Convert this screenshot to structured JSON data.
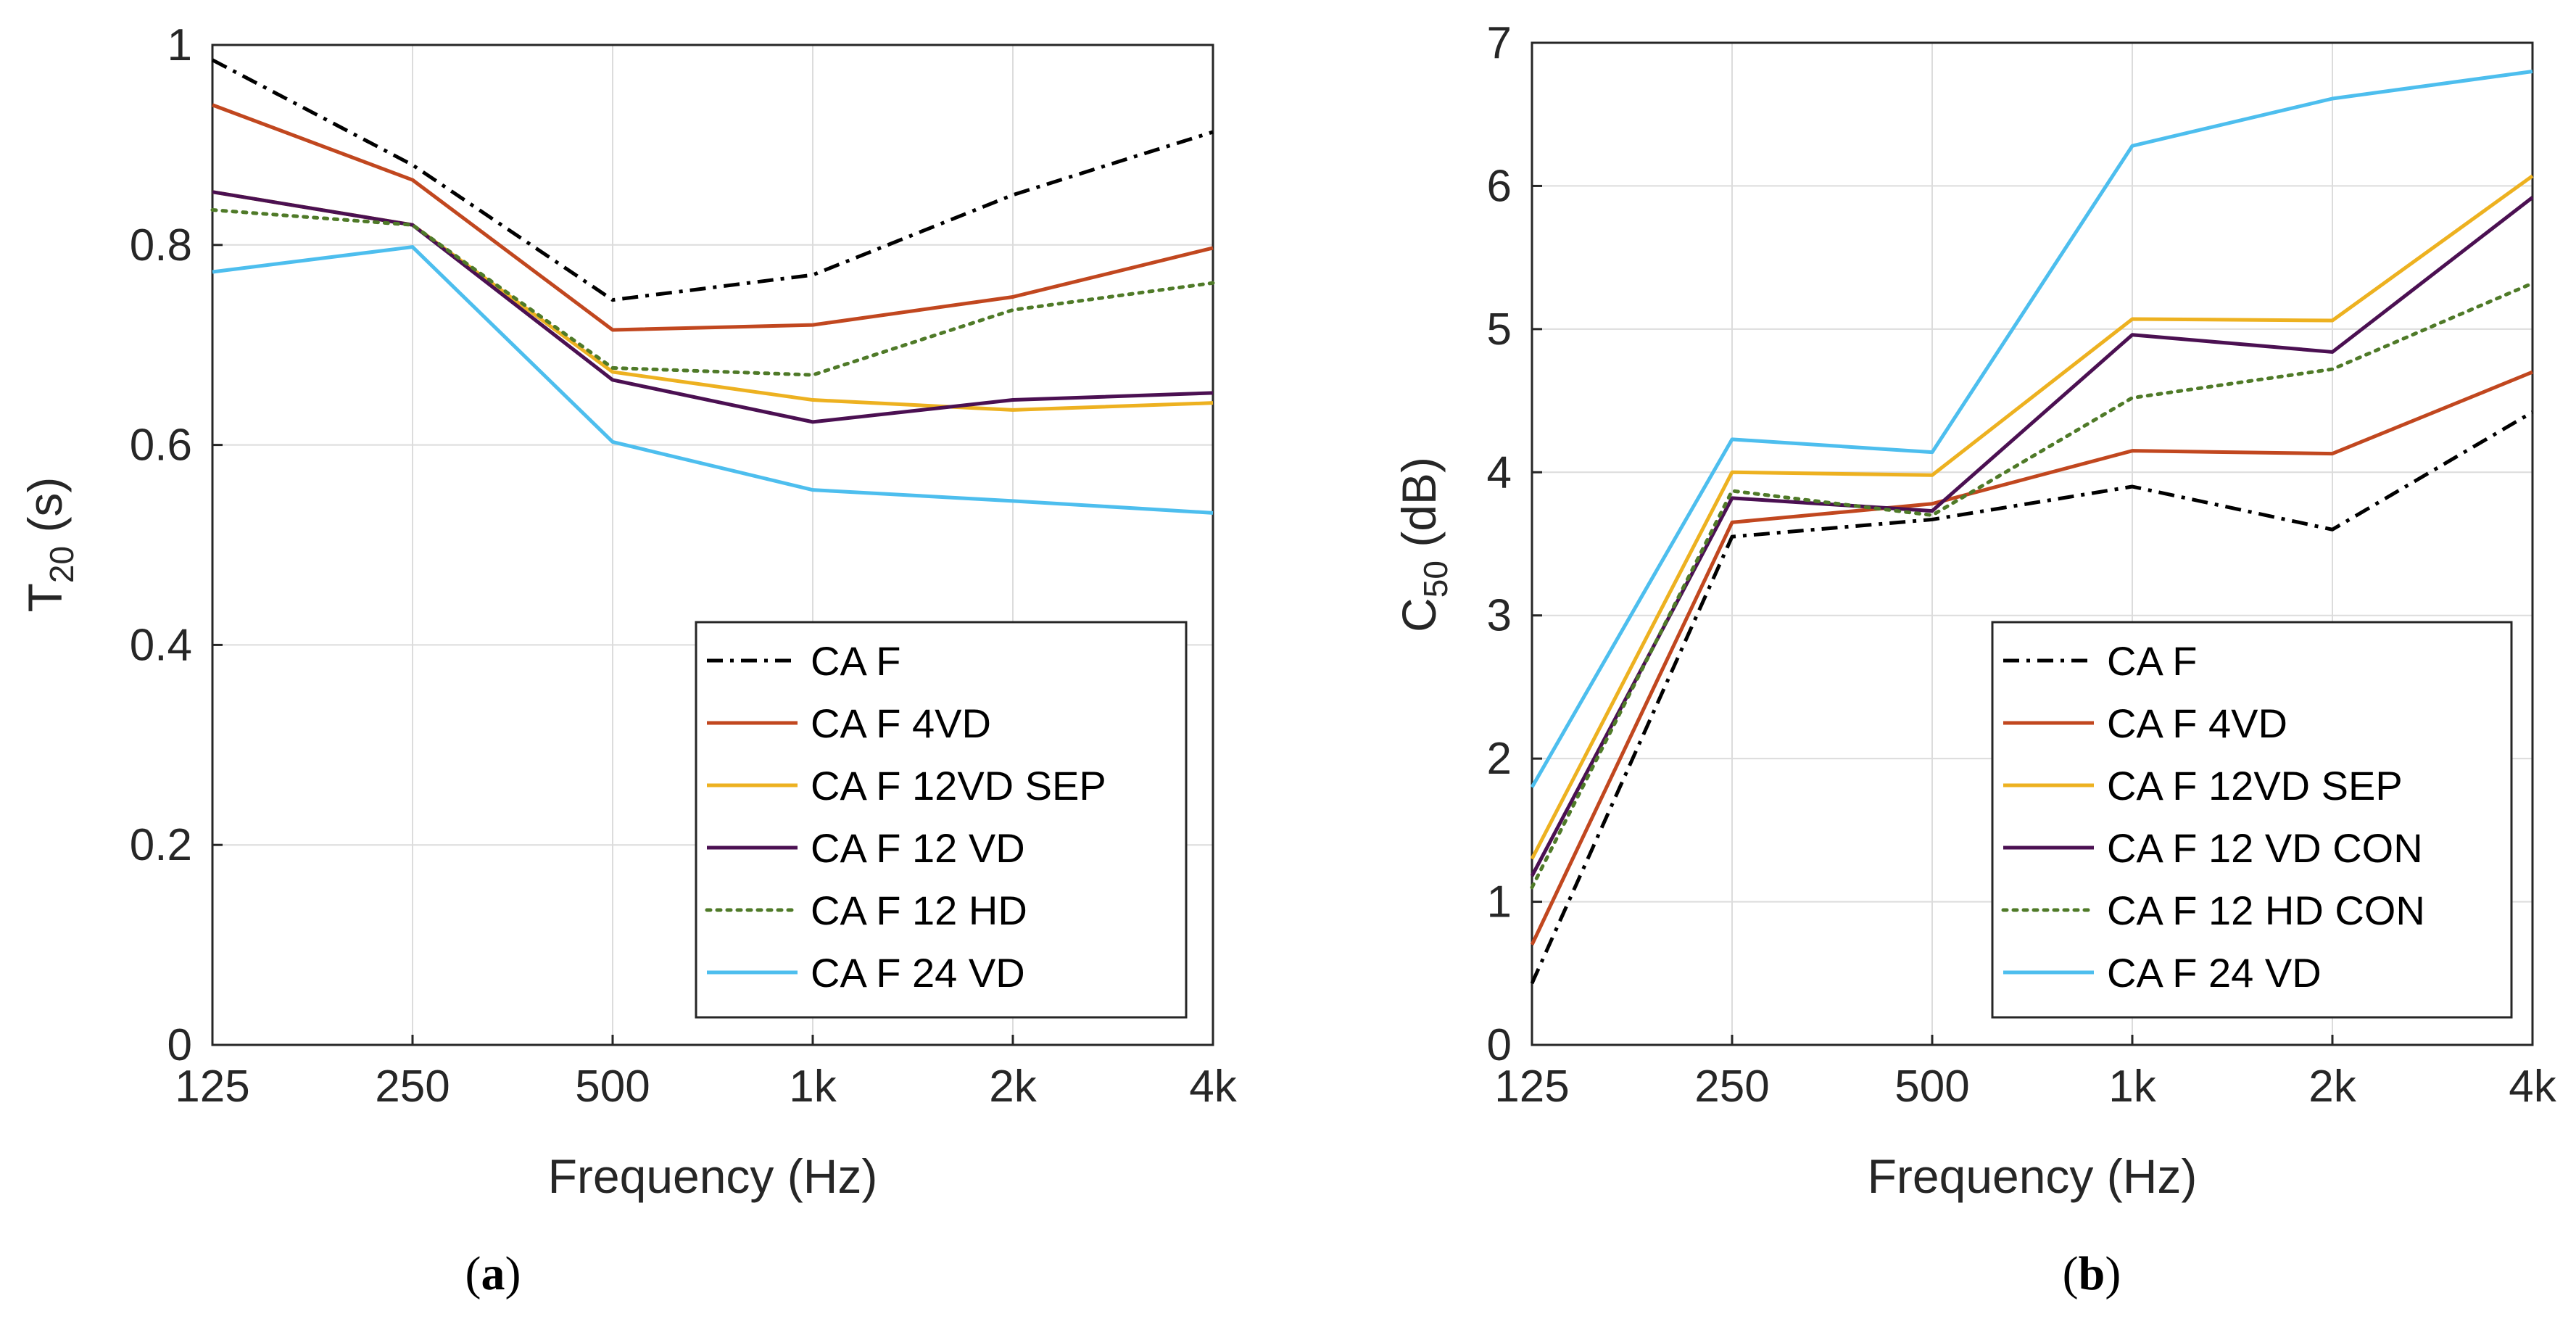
{
  "chart_data": [
    {
      "type": "line",
      "panel_label": {
        "open": "(",
        "letter": "a",
        "close": ")"
      },
      "xlabel": "Frequency (Hz)",
      "ylabel": {
        "main": "T",
        "sub": "20",
        "rest": " (s)"
      },
      "categories": [
        "125",
        "250",
        "500",
        "1k",
        "2k",
        "4k"
      ],
      "ylim": [
        0,
        1
      ],
      "yticks": [
        0,
        0.2,
        0.4,
        0.6,
        0.8,
        1
      ],
      "ytick_labels": [
        "0",
        "0.2",
        "0.4",
        "0.6",
        "0.8",
        "1"
      ],
      "grid": true,
      "legend_position": "bottom-right",
      "series": [
        {
          "name": "CA F",
          "color": "#000000",
          "style": "dashdot",
          "values": [
            0.985,
            0.88,
            0.745,
            0.77,
            0.85,
            0.913
          ]
        },
        {
          "name": "CA F 4VD",
          "color": "#c1471f",
          "style": "solid",
          "values": [
            0.94,
            0.865,
            0.715,
            0.72,
            0.748,
            0.797
          ]
        },
        {
          "name": "CA F 12VD SEP",
          "color": "#edb120",
          "style": "solid",
          "values": [
            0.853,
            0.82,
            0.673,
            0.645,
            0.635,
            0.642
          ]
        },
        {
          "name": "CA F 12 VD",
          "color": "#4b1052",
          "style": "solid",
          "values": [
            0.853,
            0.82,
            0.665,
            0.623,
            0.645,
            0.652
          ]
        },
        {
          "name": "CA F 12 HD",
          "color": "#4f7a28",
          "style": "dotted",
          "values": [
            0.835,
            0.82,
            0.677,
            0.67,
            0.735,
            0.762
          ]
        },
        {
          "name": "CA F 24 VD",
          "color": "#4dbeee",
          "style": "solid",
          "values": [
            0.773,
            0.798,
            0.603,
            0.555,
            0.544,
            0.532
          ]
        }
      ]
    },
    {
      "type": "line",
      "panel_label": {
        "open": "(",
        "letter": "b",
        "close": ")"
      },
      "xlabel": "Frequency (Hz)",
      "ylabel": {
        "main": "C",
        "sub": "50",
        "rest": " (dB)"
      },
      "categories": [
        "125",
        "250",
        "500",
        "1k",
        "2k",
        "4k"
      ],
      "ylim": [
        0,
        7
      ],
      "yticks": [
        0,
        1,
        2,
        3,
        4,
        5,
        6,
        7
      ],
      "ytick_labels": [
        "0",
        "1",
        "2",
        "3",
        "4",
        "5",
        "6",
        "7"
      ],
      "grid": true,
      "legend_position": "bottom-right",
      "series": [
        {
          "name": "CA F",
          "color": "#000000",
          "style": "dashdot",
          "values": [
            0.43,
            3.55,
            3.67,
            3.9,
            3.6,
            4.42
          ]
        },
        {
          "name": "CA F 4VD",
          "color": "#c1471f",
          "style": "solid",
          "values": [
            0.7,
            3.65,
            3.78,
            4.15,
            4.13,
            4.7
          ]
        },
        {
          "name": "CA F 12VD SEP",
          "color": "#edb120",
          "style": "solid",
          "values": [
            1.3,
            4.0,
            3.98,
            5.07,
            5.06,
            6.07
          ]
        },
        {
          "name": "CA F 12 VD CON",
          "color": "#4b1052",
          "style": "solid",
          "values": [
            1.18,
            3.82,
            3.73,
            4.96,
            4.84,
            5.92
          ]
        },
        {
          "name": "CA F 12 HD CON",
          "color": "#4f7a28",
          "style": "dotted",
          "values": [
            1.1,
            3.87,
            3.7,
            4.52,
            4.72,
            5.32
          ]
        },
        {
          "name": "CA F 24 VD",
          "color": "#4dbeee",
          "style": "solid",
          "values": [
            1.8,
            4.23,
            4.14,
            6.28,
            6.61,
            6.8
          ]
        }
      ]
    }
  ]
}
